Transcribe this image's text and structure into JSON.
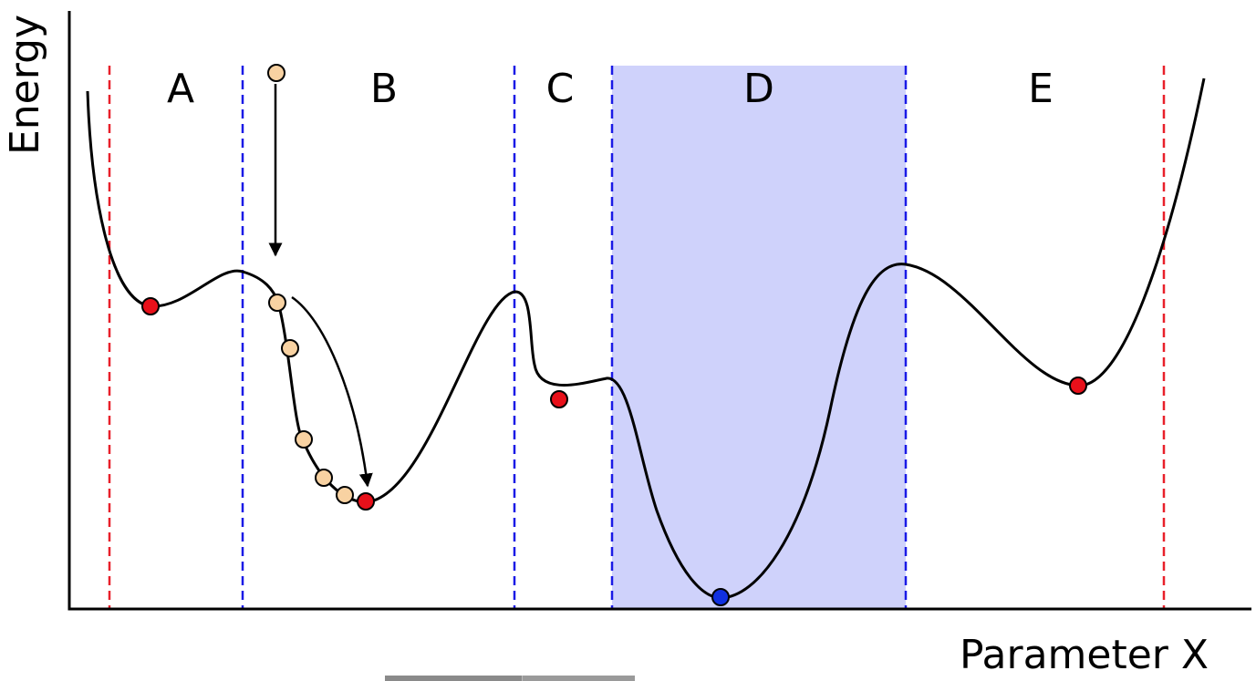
{
  "axes": {
    "y_label": "Energy",
    "x_label": "Parameter X"
  },
  "regions": [
    {
      "id": "A",
      "label": "A"
    },
    {
      "id": "B",
      "label": "B"
    },
    {
      "id": "C",
      "label": "C"
    },
    {
      "id": "D",
      "label": "D",
      "highlighted": true
    },
    {
      "id": "E",
      "label": "E"
    }
  ],
  "colors": {
    "curve": "#000000",
    "outer_boundary": "#e8202a",
    "region_boundary": "#1a1ae6",
    "highlight_fill": "#cfd2fb",
    "local_minimum": "#e8101a",
    "global_minimum": "#1030e0",
    "trajectory_ball": "#f8d2a2"
  },
  "markers": {
    "local_minima_count": 4,
    "global_minimum_count": 1,
    "trajectory_ball_count": 6
  }
}
